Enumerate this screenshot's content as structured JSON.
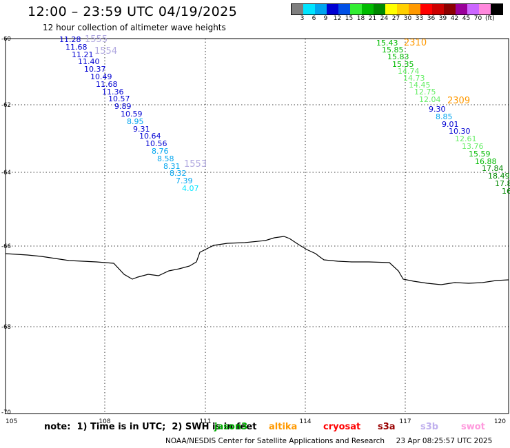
{
  "header": {
    "title": "12:00 – 23:59 UTC 04/19/2025",
    "subtitle": "12 hour collection of altimeter wave heights"
  },
  "legend": {
    "colors": [
      "#7f7f7f",
      "#00e5ff",
      "#00a5ef",
      "#0000d2",
      "#0050e6",
      "#33ee33",
      "#00bb00",
      "#008800",
      "#ffff00",
      "#ffd000",
      "#ff9900",
      "#ff0000",
      "#cc0000",
      "#8b0000",
      "#990099",
      "#cc66ff",
      "#ff88dd",
      "#000000"
    ],
    "labels": [
      "3",
      "6",
      "9",
      "12",
      "15",
      "18",
      "21",
      "24",
      "27",
      "30",
      "33",
      "36",
      "39",
      "42",
      "45",
      "70"
    ],
    "unit": "(ft)"
  },
  "map": {
    "x_ticks": [
      "105",
      "108",
      "111",
      "114",
      "117",
      "120"
    ],
    "y_ticks": [
      "-60",
      "-62",
      "-64",
      "-66",
      "-68",
      "-70"
    ]
  },
  "tracks": {
    "left_points": [
      {
        "value": "11.28",
        "color": "#0000d2"
      },
      {
        "value": "11.68",
        "color": "#0000d2"
      },
      {
        "value": "11.21",
        "color": "#0000d2"
      },
      {
        "value": "11.40",
        "color": "#0000d2"
      },
      {
        "value": "10.37",
        "color": "#0000d2"
      },
      {
        "value": "10.49",
        "color": "#0000d2"
      },
      {
        "value": "11.68",
        "color": "#0000d2"
      },
      {
        "value": "11.36",
        "color": "#0000d2"
      },
      {
        "value": "10.57",
        "color": "#0000d2"
      },
      {
        "value": "9.89",
        "color": "#0000d2"
      },
      {
        "value": "10.59",
        "color": "#0000d2"
      },
      {
        "value": "8.95",
        "color": "#00a5ef"
      },
      {
        "value": "9.31",
        "color": "#0000d2"
      },
      {
        "value": "10.64",
        "color": "#0000d2"
      },
      {
        "value": "10.56",
        "color": "#0000d2"
      },
      {
        "value": "8.76",
        "color": "#00a5ef"
      },
      {
        "value": "8.58",
        "color": "#00a5ef"
      },
      {
        "value": "8.31",
        "color": "#00a5ef"
      },
      {
        "value": "8.32",
        "color": "#00a5ef"
      },
      {
        "value": "7.39",
        "color": "#00a5ef"
      },
      {
        "value": "4.07",
        "color": "#00e5ff"
      }
    ],
    "right_points": [
      {
        "value": "15.43",
        "color": "#00bb00"
      },
      {
        "value": "15.85",
        "color": "#00bb00"
      },
      {
        "value": "15.83",
        "color": "#00bb00"
      },
      {
        "value": "15.35",
        "color": "#00bb00"
      },
      {
        "value": "14.74",
        "color": "#66ee66"
      },
      {
        "value": "14.73",
        "color": "#66ee66"
      },
      {
        "value": "14.45",
        "color": "#66ee66"
      },
      {
        "value": "12.75",
        "color": "#66ee66"
      },
      {
        "value": "12.04",
        "color": "#66ee66"
      },
      {
        "value": "9.30",
        "color": "#0000d2"
      },
      {
        "value": "8.85",
        "color": "#00a5ef"
      },
      {
        "value": "9.01",
        "color": "#0000d2"
      },
      {
        "value": "10.30",
        "color": "#0000d2"
      },
      {
        "value": "12.61",
        "color": "#66ee66"
      },
      {
        "value": "13.76",
        "color": "#66ee66"
      },
      {
        "value": "15.59",
        "color": "#00bb00"
      },
      {
        "value": "16.88",
        "color": "#00bb00"
      },
      {
        "value": "17.84",
        "color": "#008800"
      },
      {
        "value": "18.49",
        "color": "#008800"
      },
      {
        "value": "17.8",
        "color": "#008800"
      },
      {
        "value": "16",
        "color": "#008800"
      }
    ],
    "time_labels": [
      {
        "text": "1555",
        "color": "#b0a8e0"
      },
      {
        "text": "1554",
        "color": "#b0a8e0"
      },
      {
        "text": "1553",
        "color": "#b0a8e0"
      },
      {
        "text": "2310",
        "color": "#ff9900"
      },
      {
        "text": "2309",
        "color": "#ff9900"
      }
    ]
  },
  "footer": {
    "note": "note:  1) Time is in UTC;  2) SWH is in feet",
    "satellites": [
      {
        "name": "jason3",
        "color": "#00aa00"
      },
      {
        "name": "altika",
        "color": "#ff9900"
      },
      {
        "name": "cryosat",
        "color": "#ff0000"
      },
      {
        "name": "s3a",
        "color": "#990000"
      },
      {
        "name": "s3b",
        "color": "#c0b0ee"
      },
      {
        "name": "swot",
        "color": "#ff99dd"
      }
    ],
    "credit": "NOAA/NESDIS Center for Satellite Applications and Research     23 Apr 08:25:57 UTC 2025"
  }
}
